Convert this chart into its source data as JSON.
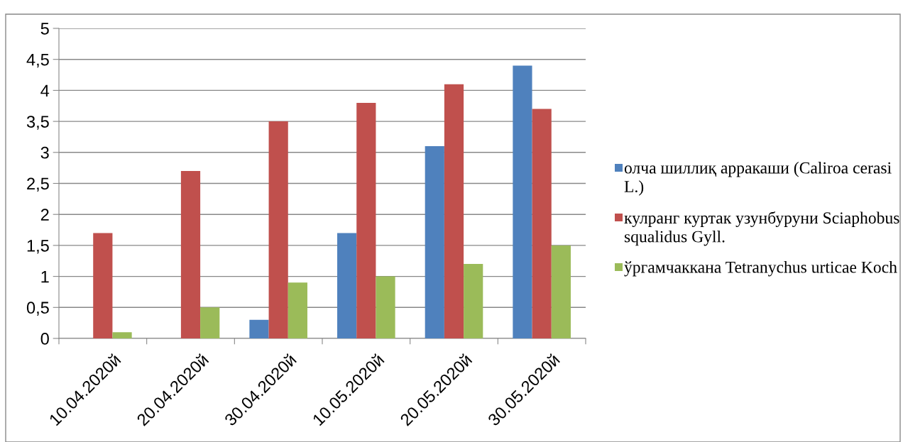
{
  "chart_data": {
    "type": "bar",
    "categories": [
      "10.04.2020й",
      "20.04.2020й",
      "30.04.2020й",
      "10.05.2020й",
      "20.05.2020й",
      "30.05.2020й"
    ],
    "series": [
      {
        "name": "олча шиллиқ арракаши (Caliroa cerasi L.)",
        "color": "#4f81bd",
        "values": [
          0,
          0,
          0.3,
          1.7,
          3.1,
          4.4
        ]
      },
      {
        "name": "кулранг куртак узунбуруни Sciaphobus squalidus Gyll.",
        "color": "#c0504d",
        "values": [
          1.7,
          2.7,
          3.5,
          3.8,
          4.1,
          3.7
        ]
      },
      {
        "name": "ўргамчаккана Tetranychus urticae Koch",
        "color": "#9bbb59",
        "values": [
          0.1,
          0.5,
          0.9,
          1.0,
          1.2,
          1.5
        ]
      }
    ],
    "ylim": [
      0,
      5
    ],
    "yticks": [
      {
        "value": 0,
        "label": "0"
      },
      {
        "value": 0.5,
        "label": "0,5"
      },
      {
        "value": 1,
        "label": "1"
      },
      {
        "value": 1.5,
        "label": "1,5"
      },
      {
        "value": 2,
        "label": "2"
      },
      {
        "value": 2.5,
        "label": "2,5"
      },
      {
        "value": 3,
        "label": "3"
      },
      {
        "value": 3.5,
        "label": "3,5"
      },
      {
        "value": 4,
        "label": "4"
      },
      {
        "value": 4.5,
        "label": "4,5"
      },
      {
        "value": 5,
        "label": "5"
      }
    ],
    "grid": "y",
    "legend": "right"
  }
}
